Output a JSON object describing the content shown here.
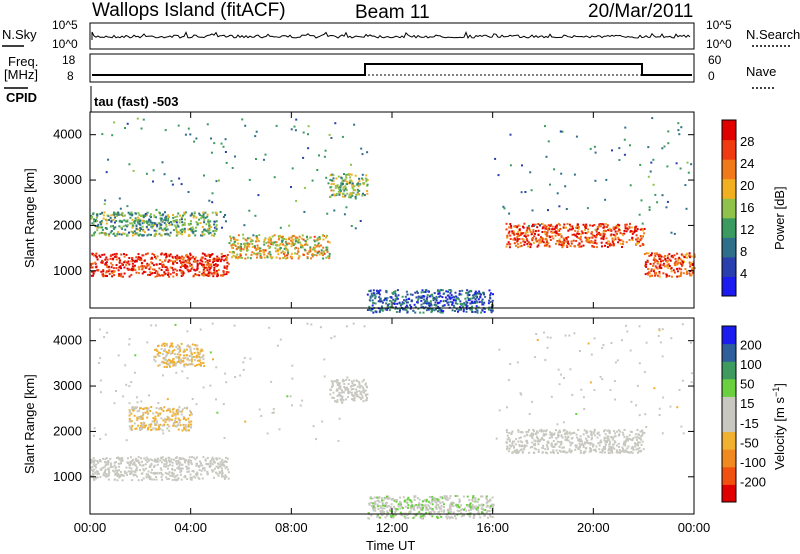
{
  "header": {
    "station": "Wallops Island (fitACF)",
    "beam": "Beam 11",
    "date": "20/Mar/2011"
  },
  "noise_panel": {
    "left_label": "N.Sky",
    "left_tick_top": "10^5",
    "left_tick_bottom": "10^0",
    "right_label": "N.Search",
    "right_tick_top": "10^5",
    "right_tick_bottom": "10^0"
  },
  "freq_panel": {
    "left_label_line1": "Freq.",
    "left_label_line2": "[MHz]",
    "left_tick_top": "18",
    "left_tick_bottom": "8",
    "right_label": "Nave",
    "right_tick_top": "60",
    "right_tick_bottom": "0"
  },
  "cpid_label": "CPID",
  "cpid_value": "tau (fast) -503",
  "x_axis": {
    "label": "Time UT",
    "ticks": [
      "00:00",
      "04:00",
      "08:00",
      "12:00",
      "16:00",
      "20:00",
      "00:00"
    ]
  },
  "colors": {
    "power_scale": [
      "#1c1cf0",
      "#2a3fae",
      "#2f6f8a",
      "#3a9a60",
      "#8fc24a",
      "#f0b020",
      "#f07a1a",
      "#f03a10",
      "#e00000"
    ],
    "velocity_scale": [
      "#e00000",
      "#f05010",
      "#f08a20",
      "#f0b030",
      "#c8c8c0",
      "#c8c8c0",
      "#6ad040",
      "#3f9a60",
      "#2f5f9a",
      "#1c1cf0"
    ]
  },
  "chart_data": [
    {
      "type": "heatmap",
      "title": "",
      "xlabel": "Time UT",
      "ylabel": "Slant Range [km]",
      "x_range": [
        "00:00",
        "24:00"
      ],
      "ylim": [
        180,
        4500
      ],
      "yticks": [
        "1000",
        "2000",
        "3000",
        "4000"
      ],
      "colorbar": {
        "label": "Power [dB]",
        "ticks": [
          "4",
          "8",
          "12",
          "16",
          "20",
          "24",
          "28"
        ],
        "range": [
          0,
          30
        ]
      },
      "features": [
        {
          "time_start": 0.0,
          "time_end": 5.5,
          "range_km": 1150,
          "level_db": 28
        },
        {
          "time_start": 5.5,
          "time_end": 9.5,
          "range_km": 1550,
          "level_db": 18
        },
        {
          "time_start": 0.0,
          "time_end": 5.0,
          "range_km": 2050,
          "level_db": 12
        },
        {
          "time_start": 9.5,
          "time_end": 11.0,
          "range_km": 2900,
          "level_db": 14
        },
        {
          "time_start": 16.5,
          "time_end": 22.0,
          "range_km": 1800,
          "level_db": 26
        },
        {
          "time_start": 22.0,
          "time_end": 24.0,
          "range_km": 1150,
          "level_db": 26
        },
        {
          "time_start": 11.0,
          "time_end": 16.0,
          "range_km": 350,
          "level_db": 6
        }
      ]
    },
    {
      "type": "heatmap",
      "title": "",
      "xlabel": "Time UT",
      "ylabel": "Slant Range [km]",
      "x_range": [
        "00:00",
        "24:00"
      ],
      "ylim": [
        180,
        4500
      ],
      "yticks": [
        "1000",
        "2000",
        "3000",
        "4000"
      ],
      "colorbar": {
        "label": "Velocity [m s^-1]",
        "ticks": [
          "-200",
          "-100",
          "-50",
          "-15",
          "15",
          "50",
          "100",
          "200"
        ],
        "range": [
          -250,
          250
        ]
      },
      "features": [
        {
          "time_start": 0.0,
          "time_end": 5.5,
          "range_km": 1200,
          "velocity": 0
        },
        {
          "time_start": 2.5,
          "time_end": 4.5,
          "range_km": 3700,
          "velocity": -60
        },
        {
          "time_start": 1.5,
          "time_end": 4.0,
          "range_km": 2300,
          "velocity": -60
        },
        {
          "time_start": 9.5,
          "time_end": 11.0,
          "range_km": 2900,
          "velocity": 0
        },
        {
          "time_start": 16.5,
          "time_end": 22.0,
          "range_km": 1800,
          "velocity": 0
        },
        {
          "time_start": 11.0,
          "time_end": 16.0,
          "range_km": 350,
          "velocity": 40
        }
      ]
    }
  ]
}
